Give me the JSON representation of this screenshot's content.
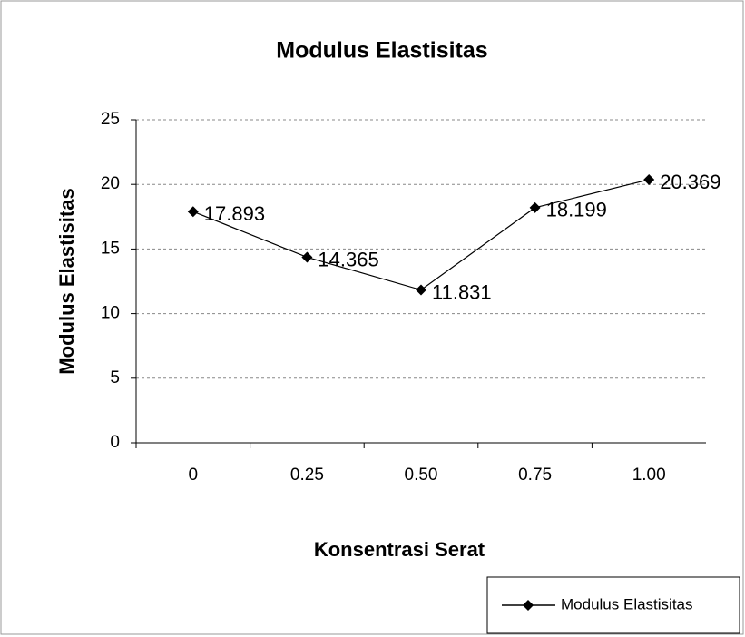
{
  "chart_data": {
    "type": "line",
    "title": "Modulus Elastisitas",
    "x_label": "Konsentrasi Serat",
    "y_label": "Modulus Elastisitas",
    "categories": [
      "0",
      "0.25",
      "0.50",
      "0.75",
      "1.00"
    ],
    "series": [
      {
        "name": "Modulus Elastisitas",
        "color": "#000000",
        "values": [
          17.893,
          14.365,
          11.831,
          18.199,
          20.369
        ]
      }
    ],
    "ylim": [
      0,
      25
    ],
    "yticks": [
      0,
      5,
      10,
      15,
      20,
      25
    ],
    "grid": true,
    "legend": "bottom-right"
  }
}
